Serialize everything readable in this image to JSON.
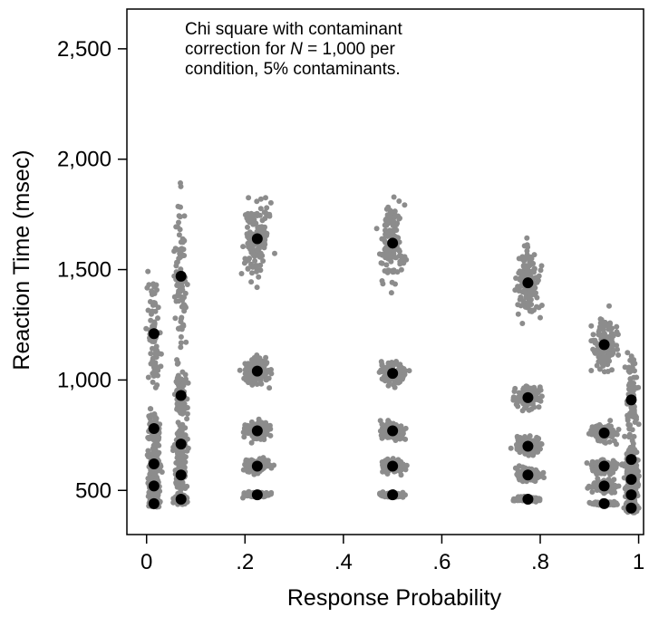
{
  "chart_data": {
    "type": "scatter",
    "annotation_lines": [
      "Chi square with contaminant",
      "correction for N = 1,000 per",
      "condition, 5% contaminants."
    ],
    "annotation_italic_token": "N",
    "xlabel": "Response Probability",
    "ylabel": "Reaction Time (msec)",
    "xlim": [
      -0.04,
      1.01
    ],
    "ylim": [
      300,
      2680
    ],
    "xticks": [
      0,
      0.2,
      0.4,
      0.6,
      0.8,
      1.0
    ],
    "xtick_labels": [
      "0",
      ".2",
      ".4",
      ".6",
      ".8",
      "1"
    ],
    "yticks": [
      500,
      1000,
      1500,
      2000,
      2500
    ],
    "ytick_labels": [
      "500",
      "1,000",
      "1,500",
      "2,000",
      "2,500"
    ],
    "grid": false,
    "colors": {
      "simulated": "#8c8c8c",
      "observed": "#000000"
    },
    "series": [
      {
        "role": "simulated",
        "columns": [
          {
            "x": 0.015,
            "quantiles_ms": [
              440,
              520,
              620,
              780,
              1210
            ]
          },
          {
            "x": 0.07,
            "quantiles_ms": [
              460,
              570,
              710,
              930,
              1470
            ]
          },
          {
            "x": 0.225,
            "quantiles_ms": [
              480,
              610,
              770,
              1040,
              1640
            ]
          },
          {
            "x": 0.5,
            "quantiles_ms": [
              480,
              610,
              770,
              1030,
              1620
            ]
          },
          {
            "x": 0.775,
            "quantiles_ms": [
              460,
              570,
              700,
              920,
              1440
            ]
          },
          {
            "x": 0.93,
            "quantiles_ms": [
              440,
              520,
              610,
              760,
              1160
            ]
          },
          {
            "x": 0.985,
            "quantiles_ms": [
              420,
              480,
              550,
              640,
              910
            ]
          }
        ]
      },
      {
        "role": "observed",
        "points": [
          {
            "x": 0.015,
            "y": 440
          },
          {
            "x": 0.015,
            "y": 520
          },
          {
            "x": 0.015,
            "y": 620
          },
          {
            "x": 0.015,
            "y": 780
          },
          {
            "x": 0.015,
            "y": 1210
          },
          {
            "x": 0.07,
            "y": 460
          },
          {
            "x": 0.07,
            "y": 570
          },
          {
            "x": 0.07,
            "y": 710
          },
          {
            "x": 0.07,
            "y": 930
          },
          {
            "x": 0.07,
            "y": 1470
          },
          {
            "x": 0.225,
            "y": 480
          },
          {
            "x": 0.225,
            "y": 610
          },
          {
            "x": 0.225,
            "y": 770
          },
          {
            "x": 0.225,
            "y": 1040
          },
          {
            "x": 0.225,
            "y": 1640
          },
          {
            "x": 0.5,
            "y": 480
          },
          {
            "x": 0.5,
            "y": 610
          },
          {
            "x": 0.5,
            "y": 770
          },
          {
            "x": 0.5,
            "y": 1030
          },
          {
            "x": 0.5,
            "y": 1620
          },
          {
            "x": 0.775,
            "y": 460
          },
          {
            "x": 0.775,
            "y": 570
          },
          {
            "x": 0.775,
            "y": 700
          },
          {
            "x": 0.775,
            "y": 920
          },
          {
            "x": 0.775,
            "y": 1440
          },
          {
            "x": 0.93,
            "y": 440
          },
          {
            "x": 0.93,
            "y": 520
          },
          {
            "x": 0.93,
            "y": 610
          },
          {
            "x": 0.93,
            "y": 760
          },
          {
            "x": 0.93,
            "y": 1160
          },
          {
            "x": 0.985,
            "y": 420
          },
          {
            "x": 0.985,
            "y": 480
          },
          {
            "x": 0.985,
            "y": 550
          },
          {
            "x": 0.985,
            "y": 640
          },
          {
            "x": 0.985,
            "y": 910
          }
        ]
      }
    ]
  }
}
